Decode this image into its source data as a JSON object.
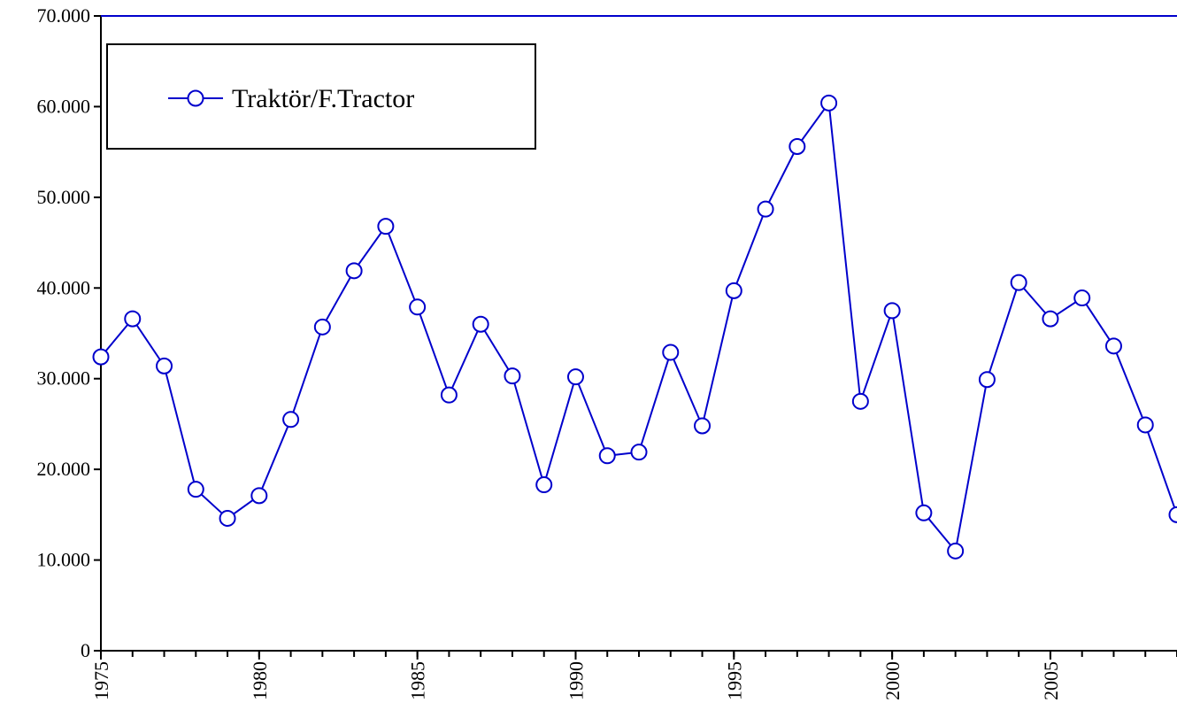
{
  "chart_data": {
    "type": "line",
    "x": [
      1975,
      1976,
      1977,
      1978,
      1979,
      1980,
      1981,
      1982,
      1983,
      1984,
      1985,
      1986,
      1987,
      1988,
      1989,
      1990,
      1991,
      1992,
      1993,
      1994,
      1995,
      1996,
      1997,
      1998,
      1999,
      2000,
      2001,
      2002,
      2003,
      2004,
      2005,
      2006,
      2007,
      2008,
      2009
    ],
    "series": [
      {
        "name": "Traktör/F.Tractor",
        "color": "#0000cc",
        "values": [
          32400,
          36600,
          31400,
          17800,
          14600,
          17100,
          25500,
          35700,
          41900,
          46800,
          37900,
          28200,
          36000,
          30300,
          18300,
          30200,
          21500,
          21900,
          32900,
          24800,
          39700,
          48700,
          55600,
          60400,
          27500,
          37500,
          15200,
          11000,
          29900,
          40600,
          36600,
          38900,
          33600,
          24900,
          15000
        ]
      }
    ],
    "xlim": [
      1975,
      2009
    ],
    "xticks": [
      1975,
      1980,
      1985,
      1990,
      1995,
      2000,
      2005
    ],
    "ylim": [
      0,
      70000
    ],
    "yticks": [
      0,
      {
        "value": 10000,
        "label": "10.000"
      },
      {
        "value": 20000,
        "label": "20.000"
      },
      {
        "value": 30000,
        "label": "30.000"
      },
      {
        "value": 40000,
        "label": "40.000"
      },
      {
        "value": 50000,
        "label": "50.000"
      },
      {
        "value": 60000,
        "label": "60.000"
      },
      {
        "value": 70000,
        "label": "70.000"
      }
    ],
    "legend": "top-left"
  }
}
